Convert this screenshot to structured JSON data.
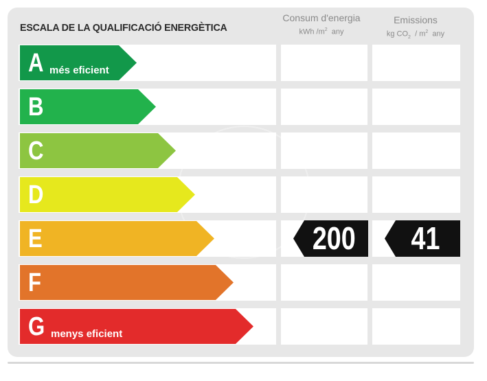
{
  "title": "ESCALA DE LA QUALIFICACIÓ ENERGÈTICA",
  "columns": {
    "consum": {
      "label": "Consum d'energia",
      "unit_prefix": "kWh /m",
      "unit_sup": "2",
      "unit_suffix": "any"
    },
    "emissions": {
      "label": "Emissions",
      "unit_prefix": "kg CO",
      "unit_sub": "2",
      "unit_mid": "/ m",
      "unit_sup": "2",
      "unit_suffix": "any"
    }
  },
  "ratings": [
    {
      "letter": "A",
      "caption": "més eficient",
      "color": "#12984a"
    },
    {
      "letter": "B",
      "caption": "",
      "color": "#22b24c"
    },
    {
      "letter": "C",
      "caption": "",
      "color": "#8dc541"
    },
    {
      "letter": "D",
      "caption": "",
      "color": "#e6e81d"
    },
    {
      "letter": "E",
      "caption": "",
      "color": "#f0b424"
    },
    {
      "letter": "F",
      "caption": "",
      "color": "#e2742a"
    },
    {
      "letter": "G",
      "caption": "menys eficient",
      "color": "#e32b2b"
    }
  ],
  "result": {
    "rating": "E",
    "consum_value": "200",
    "emissions_value": "41"
  }
}
